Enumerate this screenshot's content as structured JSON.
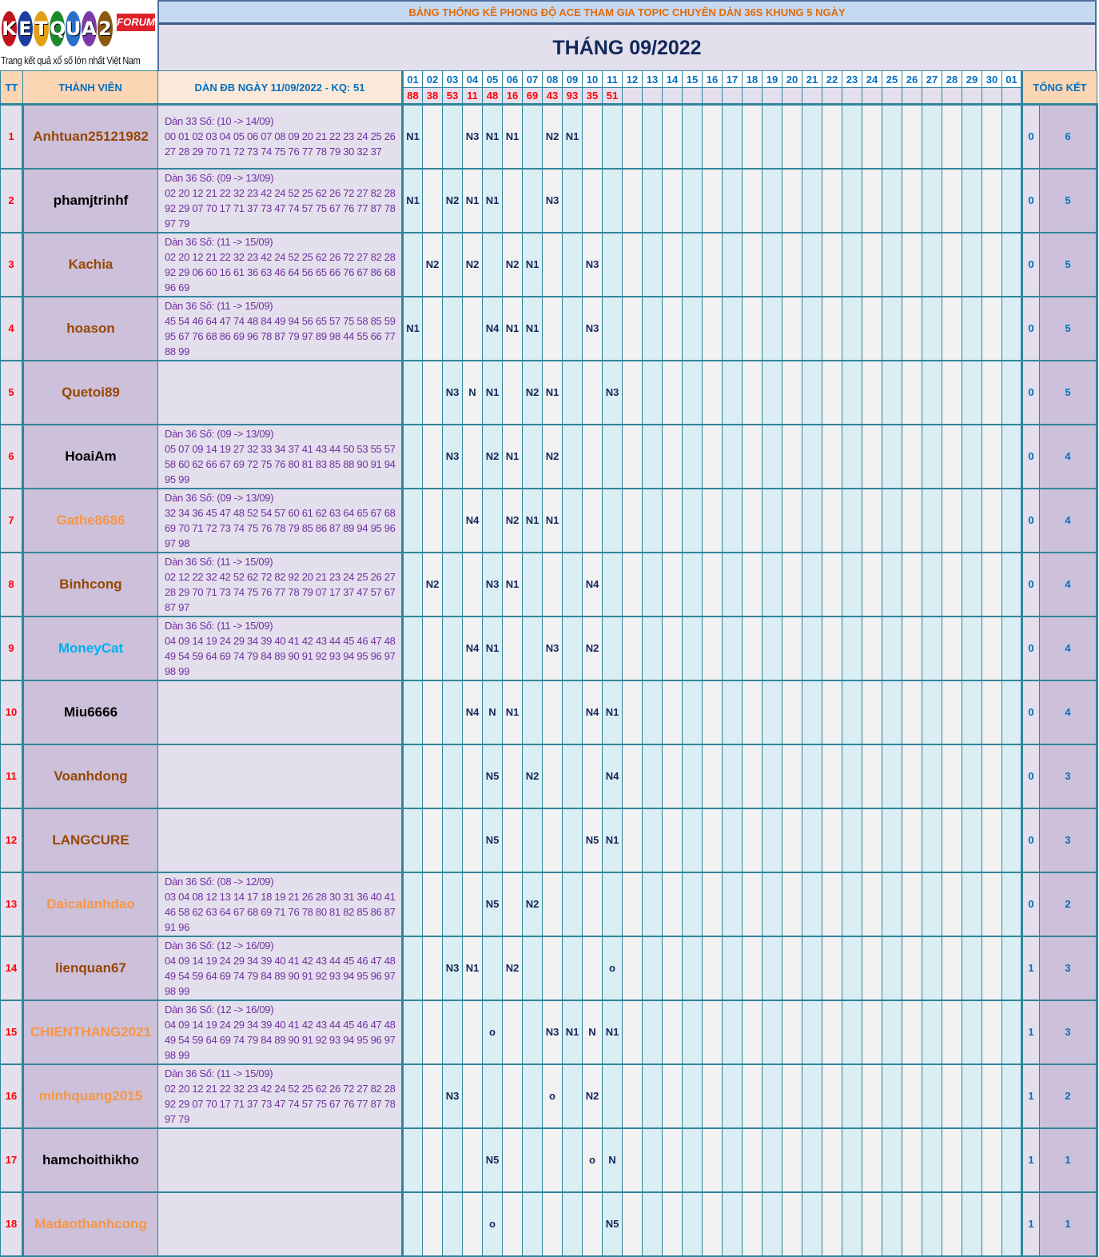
{
  "logo": {
    "letters": [
      "K",
      "E",
      "T",
      "Q",
      "U",
      "A",
      "2"
    ],
    "badge": "FORUM",
    "tagline": "Trang kết quả xổ số lớn nhất Việt Nam"
  },
  "header": {
    "banner": "BẢNG THỐNG KÊ PHONG ĐỘ ACE THAM GIA TOPIC CHUYÊN DÀN 36S KHUNG 5 NGÀY",
    "month": "THÁNG 09/2022",
    "col_tt": "TT",
    "col_member": "THÀNH VIÊN",
    "col_dan": "DÀN ĐB NGÀY 11/09/2022 - KQ: 51",
    "col_summary": "TỔNG KẾT"
  },
  "days": [
    "01",
    "02",
    "03",
    "04",
    "05",
    "06",
    "07",
    "08",
    "09",
    "10",
    "11",
    "12",
    "13",
    "14",
    "15",
    "16",
    "17",
    "18",
    "19",
    "20",
    "21",
    "22",
    "23",
    "24",
    "25",
    "26",
    "27",
    "28",
    "29",
    "30",
    "01"
  ],
  "results": [
    "88",
    "38",
    "53",
    "11",
    "48",
    "16",
    "69",
    "43",
    "93",
    "35",
    "51"
  ],
  "colors": {
    "grid": "#31859C",
    "odd_col": "#DAEEF3",
    "even_col": "#F2F2F2",
    "result": "#FF0000",
    "header_text": "#0070C0",
    "banner_text": "#E26B0A",
    "dan_text": "#7030A0"
  },
  "rows": [
    {
      "tt": "1",
      "name": "Anhtuan25121982",
      "name_color": "#974706",
      "dan_title": "Dàn 33 Số: (10 -> 14/09)",
      "dan_numbers": "00 01 02 03 04 05 06 07 08 09 20 21 22 23 24 25 26 27 28 29 70 71 72 73 74 75 76 77 78 79 30 32 37",
      "marks": {
        "1": "N1",
        "4": "N3",
        "5": "N1",
        "6": "N1",
        "8": "N2",
        "9": "N1"
      },
      "s1": "0",
      "s2": "6"
    },
    {
      "tt": "2",
      "name": "phamjtrinhf",
      "name_color": "#000000",
      "dan_title": "Dàn 36 Số: (09 -> 13/09)",
      "dan_numbers": "02 20 12 21 22 32 23 42 24 52 25 62 26 72 27 82 28 92 29 07 70 17 71 37 73 47 74 57 75 67 76 77 87 78 97 79",
      "marks": {
        "1": "N1",
        "3": "N2",
        "4": "N1",
        "5": "N1",
        "8": "N3"
      },
      "s1": "0",
      "s2": "5"
    },
    {
      "tt": "3",
      "name": "Kachia",
      "name_color": "#974706",
      "dan_title": "Dàn 36 Số: (11 -> 15/09)",
      "dan_numbers": "02 20 12 21 22 32 23 42 24 52 25 62 26 72 27 82 28 92 29 06 60 16 61 36 63 46 64 56 65 66 76 67 86 68 96 69",
      "marks": {
        "2": "N2",
        "4": "N2",
        "6": "N2",
        "7": "N1",
        "10": "N3"
      },
      "s1": "0",
      "s2": "5"
    },
    {
      "tt": "4",
      "name": "hoason",
      "name_color": "#974706",
      "dan_title": "Dàn 36 Số: (11 -> 15/09)",
      "dan_numbers": "45 54 46 64 47 74 48 84 49 94 56 65 57 75 58 85 59 95 67 76 68 86 69 96 78 87 79 97 89 98 44 55 66 77 88 99",
      "marks": {
        "1": "N1",
        "5": "N4",
        "6": "N1",
        "7": "N1",
        "10": "N3"
      },
      "s1": "0",
      "s2": "5"
    },
    {
      "tt": "5",
      "name": "Quetoi89",
      "name_color": "#974706",
      "dan_title": "",
      "dan_numbers": "",
      "marks": {
        "3": "N3",
        "4": "N",
        "5": "N1",
        "7": "N2",
        "8": "N1",
        "11": "N3"
      },
      "s1": "0",
      "s2": "5"
    },
    {
      "tt": "6",
      "name": "HoaiAm",
      "name_color": "#000000",
      "dan_title": "Dàn 36 Số: (09 -> 13/09)",
      "dan_numbers": "05 07 09 14 19 27 32 33 34 37 41 43 44 50 53 55 57 58 60 62 66 67 69 72 75 76 80 81 83 85 88 90 91 94 95 99",
      "marks": {
        "3": "N3",
        "5": "N2",
        "6": "N1",
        "8": "N2"
      },
      "s1": "0",
      "s2": "4"
    },
    {
      "tt": "7",
      "name": "Gathe8686",
      "name_color": "#F79646",
      "dan_title": "Dàn 36 Số: (09 -> 13/09)",
      "dan_numbers": "32 34 36 45 47 48 52 54 57 60 61 62 63 64 65 67 68 69 70 71 72 73 74 75 76 78 79 85 86 87 89 94 95 96 97 98",
      "marks": {
        "4": "N4",
        "6": "N2",
        "7": "N1",
        "8": "N1"
      },
      "s1": "0",
      "s2": "4"
    },
    {
      "tt": "8",
      "name": "Binhcong",
      "name_color": "#974706",
      "dan_title": "Dàn 36 Số: (11 -> 15/09)",
      "dan_numbers": "02 12 22 32 42 52 62 72 82 92 20 21 23 24 25 26 27 28 29 70 71 73 74 75 76 77 78 79 07 17 37 47 57 67 87 97",
      "marks": {
        "2": "N2",
        "5": "N3",
        "6": "N1",
        "10": "N4"
      },
      "s1": "0",
      "s2": "4"
    },
    {
      "tt": "9",
      "name": "MoneyCat",
      "name_color": "#00B0F0",
      "dan_title": "Dàn 36 Số: (11 -> 15/09)",
      "dan_numbers": "04 09 14 19 24 29 34 39 40 41 42 43 44 45 46 47 48 49 54 59 64 69 74 79 84 89 90 91 92 93 94 95 96 97 98 99",
      "marks": {
        "4": "N4",
        "5": "N1",
        "8": "N3",
        "10": "N2"
      },
      "s1": "0",
      "s2": "4"
    },
    {
      "tt": "10",
      "name": "Miu6666",
      "name_color": "#000000",
      "dan_title": "",
      "dan_numbers": "",
      "marks": {
        "4": "N4",
        "5": "N",
        "6": "N1",
        "10": "N4",
        "11": "N1"
      },
      "s1": "0",
      "s2": "4"
    },
    {
      "tt": "11",
      "name": "Voanhdong",
      "name_color": "#974706",
      "dan_title": "",
      "dan_numbers": "",
      "marks": {
        "5": "N5",
        "7": "N2",
        "11": "N4"
      },
      "s1": "0",
      "s2": "3"
    },
    {
      "tt": "12",
      "name": "LANGCURE",
      "name_color": "#974706",
      "dan_title": "",
      "dan_numbers": "",
      "marks": {
        "5": "N5",
        "10": "N5",
        "11": "N1"
      },
      "s1": "0",
      "s2": "3"
    },
    {
      "tt": "13",
      "name": "Daicalanhdao",
      "name_color": "#F79646",
      "dan_title": "Dàn 36 Số: (08 -> 12/09)",
      "dan_numbers": "03 04 08 12 13 14 17 18 19 21 26 28 30 31 36 40 41 46 58 62 63 64 67 68 69 71 76 78 80 81 82 85 86 87 91 96",
      "marks": {
        "5": "N5",
        "7": "N2"
      },
      "s1": "0",
      "s2": "2"
    },
    {
      "tt": "14",
      "name": "lienquan67",
      "name_color": "#974706",
      "dan_title": "Dàn 36 Số: (12 -> 16/09)",
      "dan_numbers": "04 09 14 19 24 29 34 39 40 41 42 43 44 45 46 47 48 49 54 59 64 69 74 79 84 89 90 91 92 93 94 95 96 97 98 99",
      "marks": {
        "3": "N3",
        "4": "N1",
        "6": "N2",
        "11": "o"
      },
      "s1": "1",
      "s2": "3"
    },
    {
      "tt": "15",
      "name": "CHIENTHANG2021",
      "name_color": "#F79646",
      "dan_title": "Dàn 36 Số: (12 -> 16/09)",
      "dan_numbers": "04 09 14 19 24 29 34 39 40 41 42 43 44 45 46 47 48 49 54 59 64 69 74 79 84 89 90 91 92 93 94 95 96 97 98 99",
      "marks": {
        "5": "o",
        "8": "N3",
        "9": "N1",
        "10": "N",
        "11": "N1"
      },
      "s1": "1",
      "s2": "3"
    },
    {
      "tt": "16",
      "name": "minhquang2015",
      "name_color": "#F79646",
      "dan_title": "Dàn 36 Số: (11 -> 15/09)",
      "dan_numbers": "02 20 12 21 22 32 23 42 24 52 25 62 26 72 27 82 28 92 29 07 70 17 71 37 73 47 74 57 75 67 76 77 87 78 97 79",
      "marks": {
        "3": "N3",
        "8": "o",
        "10": "N2"
      },
      "s1": "1",
      "s2": "2"
    },
    {
      "tt": "17",
      "name": "hamchoithikho",
      "name_color": "#000000",
      "dan_title": "",
      "dan_numbers": "",
      "marks": {
        "5": "N5",
        "10": "o",
        "11": "N"
      },
      "s1": "1",
      "s2": "1"
    },
    {
      "tt": "18",
      "name": "Madaothanhcong",
      "name_color": "#F79646",
      "dan_title": "",
      "dan_numbers": "",
      "marks": {
        "5": "o",
        "11": "N5"
      },
      "s1": "1",
      "s2": "1"
    }
  ]
}
